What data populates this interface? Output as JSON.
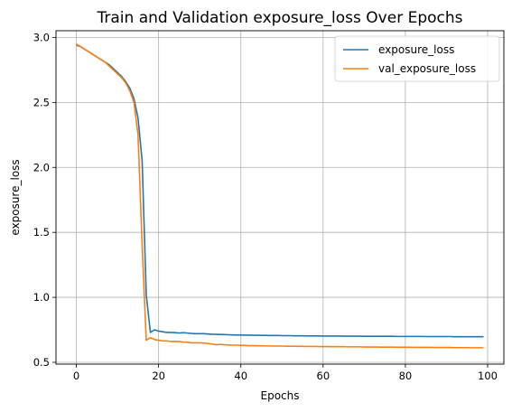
{
  "chart_data": {
    "type": "line",
    "title": "Train and Validation exposure_loss Over Epochs",
    "xlabel": "Epochs",
    "ylabel": "exposure_loss",
    "xlim": [
      -4.95,
      103.95
    ],
    "ylim": [
      0.486,
      3.052
    ],
    "xticks": [
      0,
      20,
      40,
      60,
      80,
      100
    ],
    "yticks": [
      0.5,
      1.0,
      1.5,
      2.0,
      2.5,
      3.0
    ],
    "xtick_labels": [
      "0",
      "20",
      "40",
      "60",
      "80",
      "100"
    ],
    "ytick_labels": [
      "0.5",
      "1.0",
      "1.5",
      "2.0",
      "2.5",
      "3.0"
    ],
    "grid": true,
    "legend_position": "top-right",
    "series": [
      {
        "name": "exposure_loss",
        "color": "#1f77b4",
        "x": [
          0,
          1,
          2,
          3,
          4,
          5,
          6,
          7,
          8,
          9,
          10,
          11,
          12,
          13,
          14,
          15,
          16,
          17,
          18,
          19,
          20,
          21,
          22,
          23,
          24,
          25,
          26,
          27,
          28,
          29,
          30,
          31,
          32,
          33,
          34,
          35,
          36,
          37,
          38,
          39,
          40,
          41,
          42,
          43,
          44,
          45,
          46,
          47,
          48,
          49,
          50,
          51,
          52,
          53,
          54,
          55,
          56,
          57,
          58,
          59,
          60,
          61,
          62,
          63,
          64,
          65,
          66,
          67,
          68,
          69,
          70,
          71,
          72,
          73,
          74,
          75,
          76,
          77,
          78,
          79,
          80,
          81,
          82,
          83,
          84,
          85,
          86,
          87,
          88,
          89,
          90,
          91,
          92,
          93,
          94,
          95,
          96,
          97,
          98,
          99
        ],
        "y": [
          2.94,
          2.93,
          2.91,
          2.89,
          2.87,
          2.85,
          2.83,
          2.81,
          2.79,
          2.76,
          2.73,
          2.7,
          2.66,
          2.61,
          2.53,
          2.38,
          2.05,
          1.02,
          0.73,
          0.75,
          0.74,
          0.735,
          0.73,
          0.73,
          0.728,
          0.725,
          0.728,
          0.725,
          0.722,
          0.72,
          0.72,
          0.72,
          0.718,
          0.716,
          0.715,
          0.714,
          0.713,
          0.712,
          0.711,
          0.71,
          0.71,
          0.709,
          0.709,
          0.708,
          0.708,
          0.707,
          0.707,
          0.706,
          0.706,
          0.706,
          0.705,
          0.705,
          0.705,
          0.704,
          0.704,
          0.704,
          0.703,
          0.703,
          0.703,
          0.703,
          0.702,
          0.702,
          0.702,
          0.702,
          0.702,
          0.701,
          0.701,
          0.701,
          0.701,
          0.701,
          0.7,
          0.7,
          0.7,
          0.7,
          0.7,
          0.7,
          0.7,
          0.7,
          0.699,
          0.699,
          0.699,
          0.699,
          0.699,
          0.699,
          0.699,
          0.698,
          0.698,
          0.698,
          0.698,
          0.698,
          0.698,
          0.698,
          0.697,
          0.697,
          0.697,
          0.697,
          0.697,
          0.697,
          0.697,
          0.697
        ]
      },
      {
        "name": "val_exposure_loss",
        "color": "#ff7f0e",
        "x": [
          0,
          1,
          2,
          3,
          4,
          5,
          6,
          7,
          8,
          9,
          10,
          11,
          12,
          13,
          14,
          15,
          16,
          17,
          18,
          19,
          20,
          21,
          22,
          23,
          24,
          25,
          26,
          27,
          28,
          29,
          30,
          31,
          32,
          33,
          34,
          35,
          36,
          37,
          38,
          39,
          40,
          41,
          42,
          43,
          44,
          45,
          46,
          47,
          48,
          49,
          50,
          51,
          52,
          53,
          54,
          55,
          56,
          57,
          58,
          59,
          60,
          61,
          62,
          63,
          64,
          65,
          66,
          67,
          68,
          69,
          70,
          71,
          72,
          73,
          74,
          75,
          76,
          77,
          78,
          79,
          80,
          81,
          82,
          83,
          84,
          85,
          86,
          87,
          88,
          89,
          90,
          91,
          92,
          93,
          94,
          95,
          96,
          97,
          98,
          99
        ],
        "y": [
          2.95,
          2.93,
          2.91,
          2.89,
          2.87,
          2.85,
          2.83,
          2.81,
          2.78,
          2.75,
          2.72,
          2.69,
          2.65,
          2.59,
          2.5,
          2.25,
          1.4,
          0.67,
          0.69,
          0.675,
          0.67,
          0.665,
          0.665,
          0.66,
          0.66,
          0.66,
          0.655,
          0.655,
          0.65,
          0.65,
          0.65,
          0.648,
          0.645,
          0.64,
          0.635,
          0.638,
          0.635,
          0.633,
          0.632,
          0.632,
          0.63,
          0.63,
          0.628,
          0.628,
          0.627,
          0.627,
          0.626,
          0.626,
          0.625,
          0.625,
          0.625,
          0.624,
          0.624,
          0.624,
          0.623,
          0.623,
          0.622,
          0.622,
          0.622,
          0.621,
          0.621,
          0.621,
          0.62,
          0.62,
          0.62,
          0.62,
          0.619,
          0.619,
          0.619,
          0.619,
          0.618,
          0.618,
          0.618,
          0.618,
          0.617,
          0.617,
          0.617,
          0.617,
          0.616,
          0.616,
          0.616,
          0.616,
          0.615,
          0.615,
          0.615,
          0.615,
          0.615,
          0.614,
          0.614,
          0.614,
          0.614,
          0.614,
          0.613,
          0.613,
          0.613,
          0.613,
          0.612,
          0.612,
          0.612,
          0.612
        ]
      }
    ]
  }
}
